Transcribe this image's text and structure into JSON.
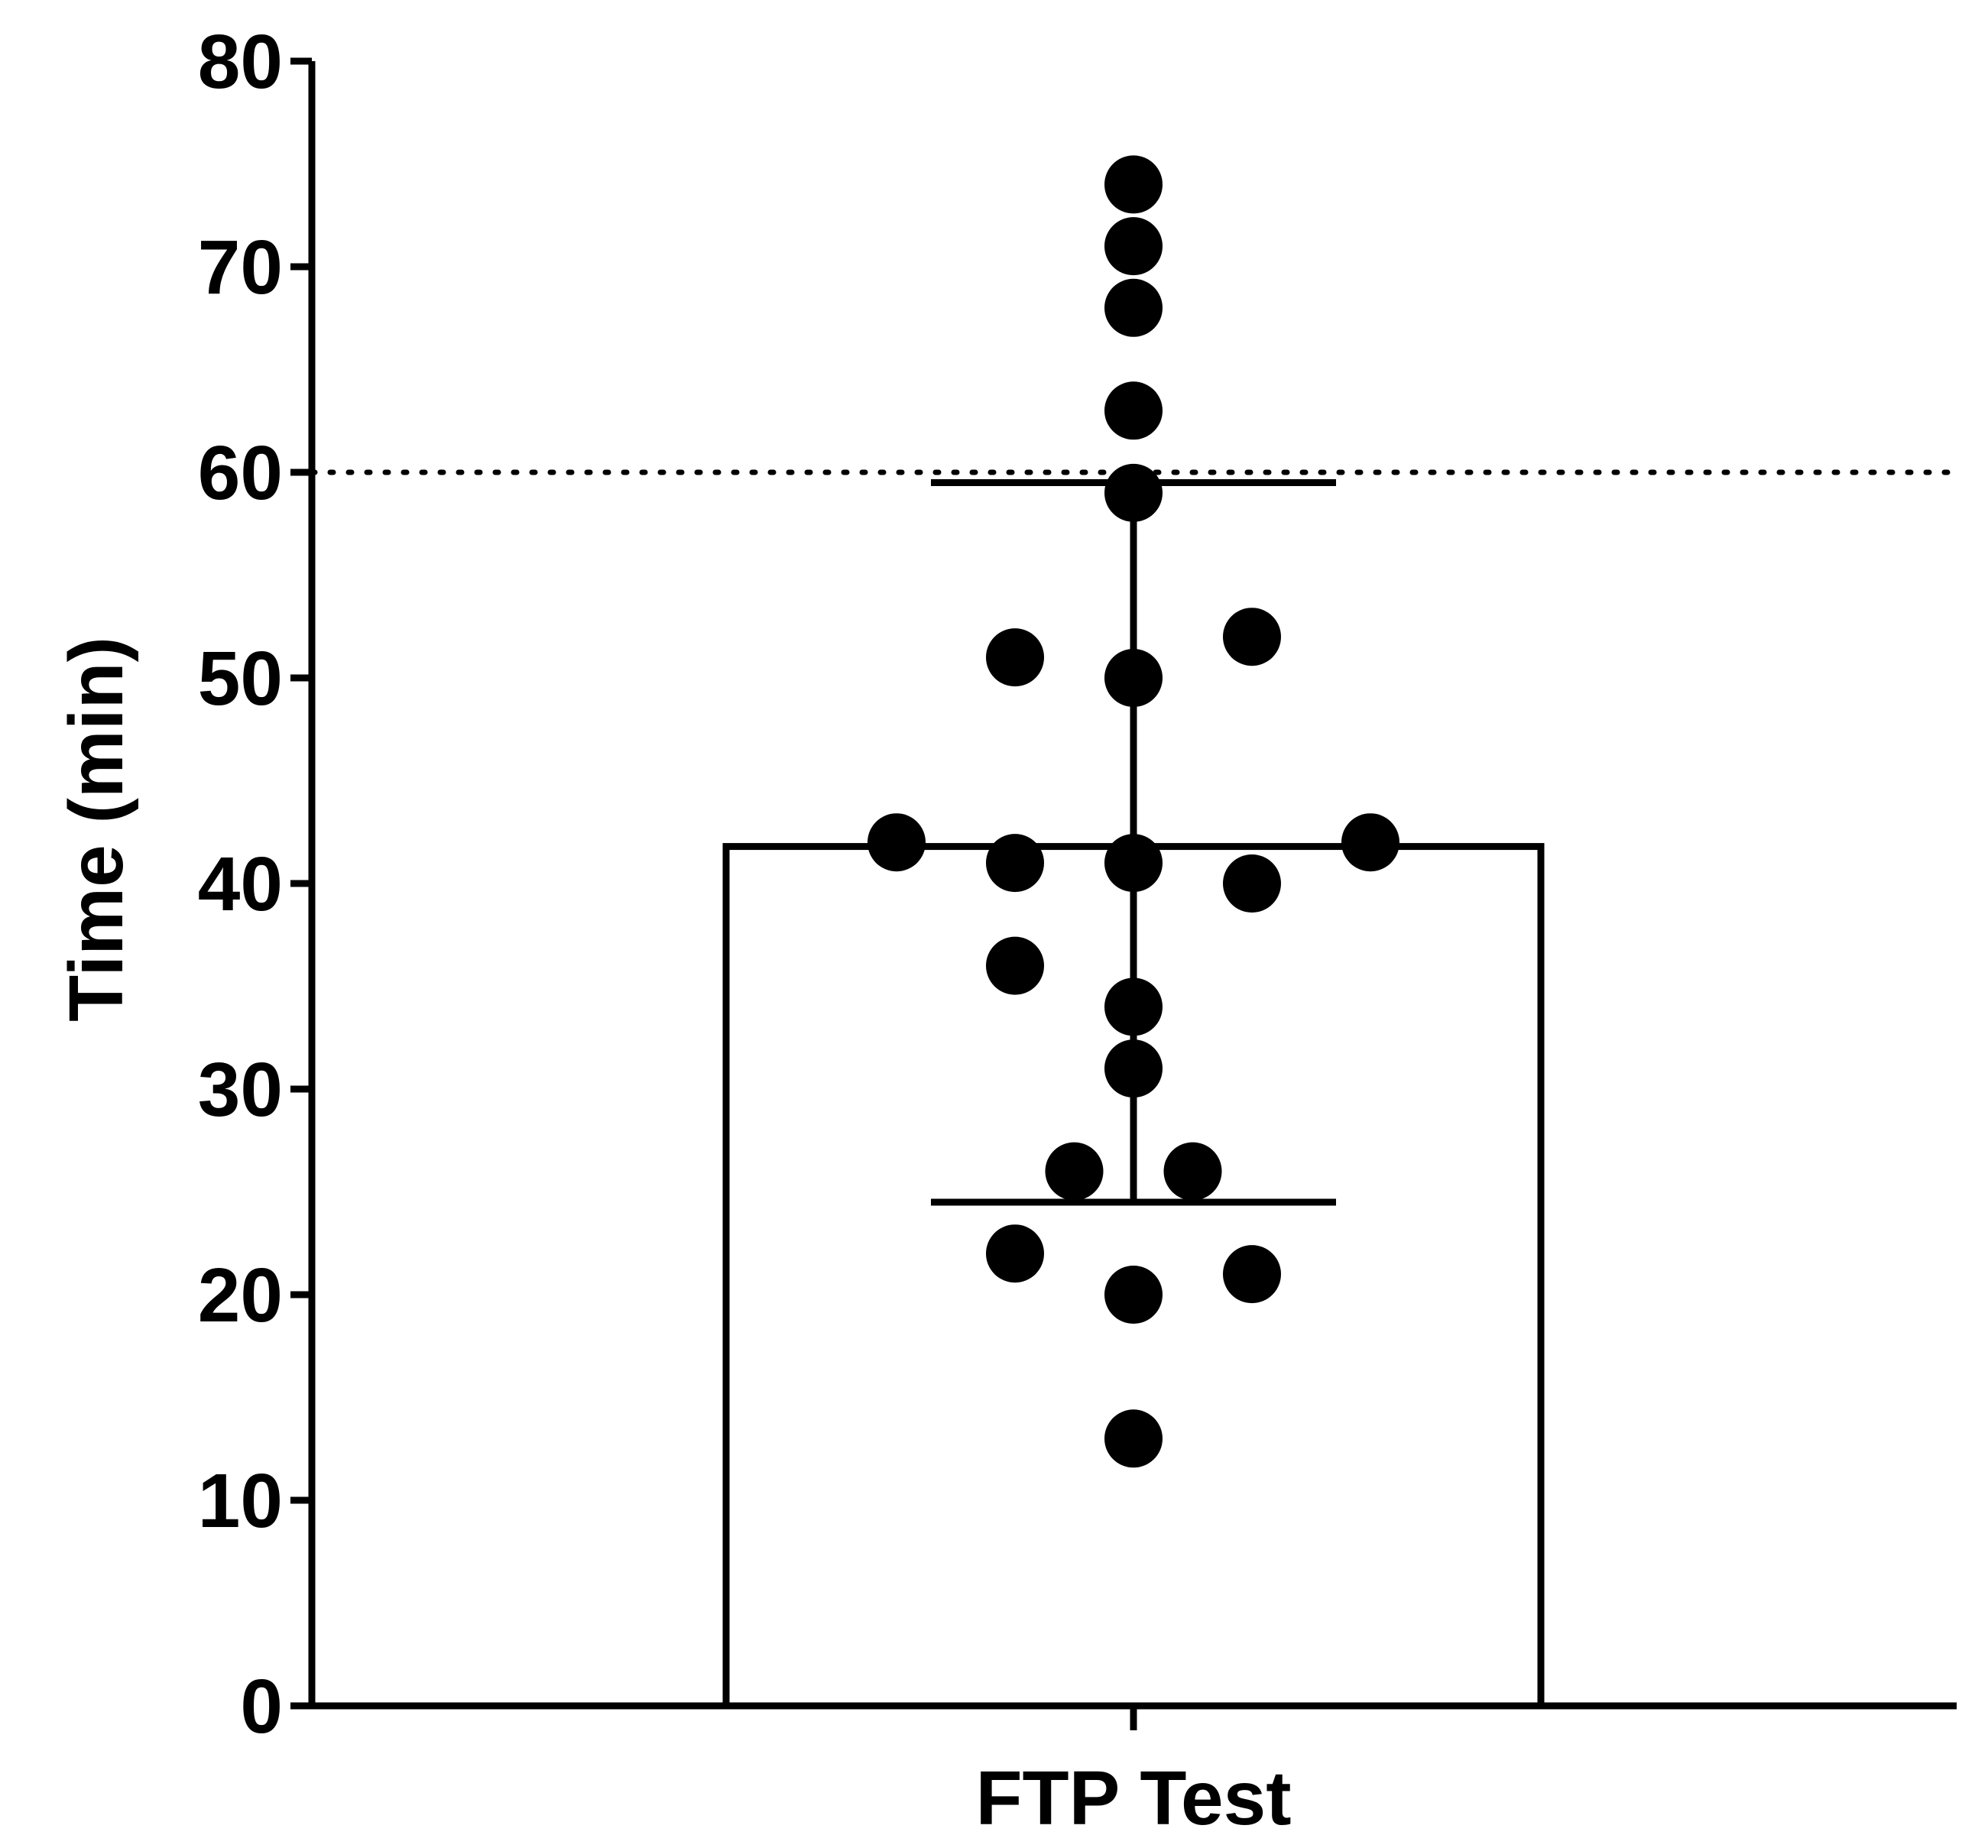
{
  "chart_data": {
    "type": "bar",
    "categories": [
      "FTP Test"
    ],
    "values": [
      41.8
    ],
    "error_bar": {
      "mean": 41.8,
      "lower": 24.5,
      "upper": 59.5
    },
    "ylabel": "Time (min)",
    "xlabel": "",
    "ylim": [
      0,
      80
    ],
    "yticks": [
      0,
      10,
      20,
      30,
      40,
      50,
      60,
      70,
      80
    ],
    "reference_line": {
      "y": 60,
      "style": "dotted"
    },
    "points": [
      {
        "x": 0,
        "y": 74
      },
      {
        "x": 0,
        "y": 71
      },
      {
        "x": 0,
        "y": 68
      },
      {
        "x": 0,
        "y": 63
      },
      {
        "x": 0,
        "y": 59
      },
      {
        "x": -1,
        "y": 51
      },
      {
        "x": 0,
        "y": 50
      },
      {
        "x": 1,
        "y": 52
      },
      {
        "x": -2,
        "y": 42
      },
      {
        "x": -1,
        "y": 41
      },
      {
        "x": 0,
        "y": 41
      },
      {
        "x": 1,
        "y": 40
      },
      {
        "x": 2,
        "y": 42
      },
      {
        "x": -1,
        "y": 36
      },
      {
        "x": 0,
        "y": 34
      },
      {
        "x": 0,
        "y": 31
      },
      {
        "x": -0.5,
        "y": 26
      },
      {
        "x": 0.5,
        "y": 26
      },
      {
        "x": -1,
        "y": 22
      },
      {
        "x": 0,
        "y": 20
      },
      {
        "x": 1,
        "y": 21
      },
      {
        "x": 0,
        "y": 13
      }
    ],
    "grid": false,
    "legend": "none"
  }
}
